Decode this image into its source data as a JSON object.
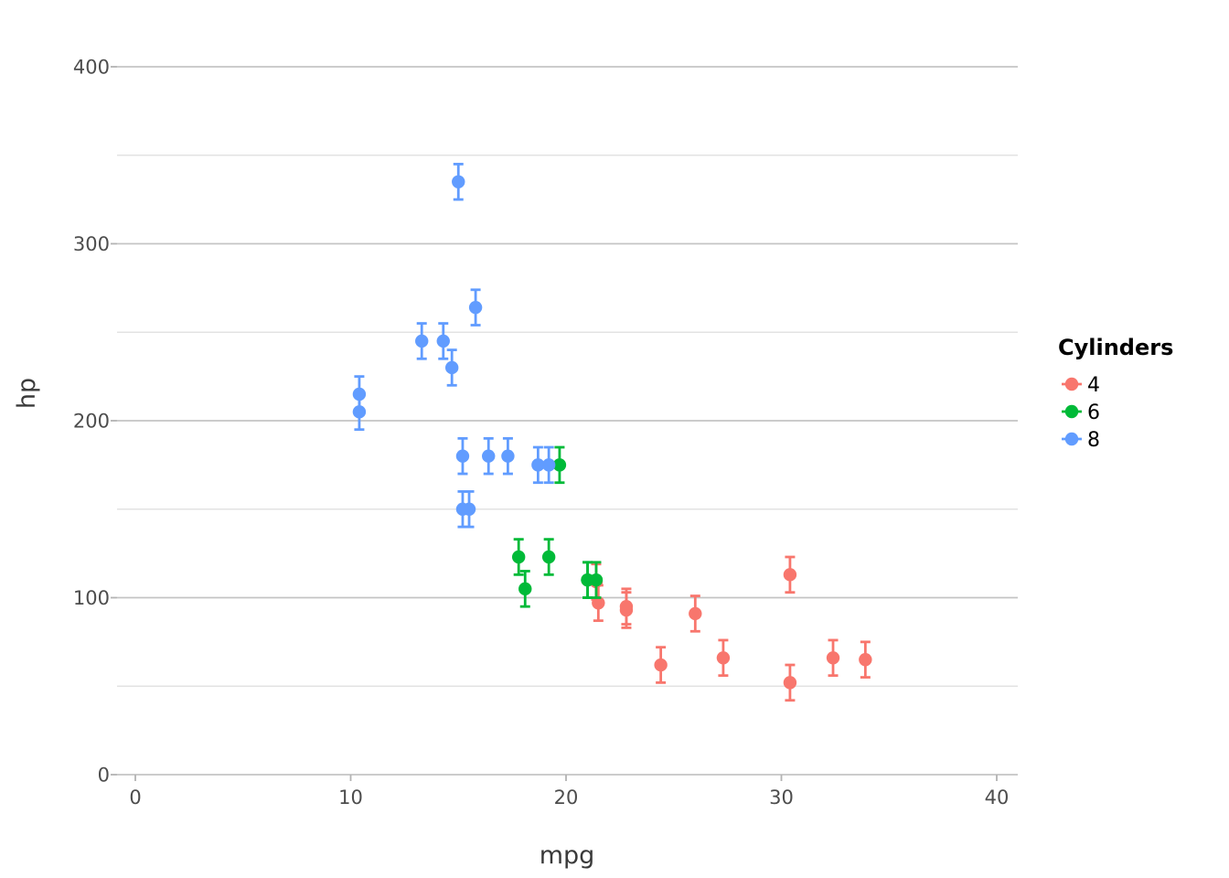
{
  "chart_data": {
    "type": "scatter",
    "xlabel": "mpg",
    "ylabel": "hp",
    "xlim": [
      0,
      40
    ],
    "ylim": [
      0,
      400
    ],
    "x_ticks": [
      0,
      10,
      20,
      30,
      40
    ],
    "y_ticks": [
      0,
      100,
      200,
      300,
      400
    ],
    "y_minor_ticks": [
      50,
      150,
      250,
      350
    ],
    "grid": true,
    "error_bar_halfwidth": 10,
    "legend": {
      "title": "Cylinders",
      "position": "right",
      "entries": [
        {
          "label": "4",
          "color": "#F8766D"
        },
        {
          "label": "6",
          "color": "#00BA38"
        },
        {
          "label": "8",
          "color": "#619CFF"
        }
      ]
    },
    "series": [
      {
        "name": "4",
        "color": "#F8766D",
        "points": [
          [
            22.8,
            93
          ],
          [
            24.4,
            62
          ],
          [
            22.8,
            95
          ],
          [
            32.4,
            66
          ],
          [
            30.4,
            52
          ],
          [
            33.9,
            65
          ],
          [
            21.5,
            97
          ],
          [
            27.3,
            66
          ],
          [
            26.0,
            91
          ],
          [
            30.4,
            113
          ],
          [
            21.4,
            109
          ]
        ]
      },
      {
        "name": "6",
        "color": "#00BA38",
        "points": [
          [
            21.0,
            110
          ],
          [
            21.0,
            110
          ],
          [
            21.4,
            110
          ],
          [
            18.1,
            105
          ],
          [
            19.2,
            123
          ],
          [
            17.8,
            123
          ],
          [
            19.7,
            175
          ]
        ]
      },
      {
        "name": "8",
        "color": "#619CFF",
        "points": [
          [
            18.7,
            175
          ],
          [
            14.3,
            245
          ],
          [
            16.4,
            180
          ],
          [
            17.3,
            180
          ],
          [
            15.2,
            180
          ],
          [
            10.4,
            205
          ],
          [
            10.4,
            215
          ],
          [
            14.7,
            230
          ],
          [
            15.5,
            150
          ],
          [
            15.2,
            150
          ],
          [
            13.3,
            245
          ],
          [
            19.2,
            175
          ],
          [
            15.8,
            264
          ],
          [
            15.0,
            335
          ]
        ]
      }
    ]
  }
}
